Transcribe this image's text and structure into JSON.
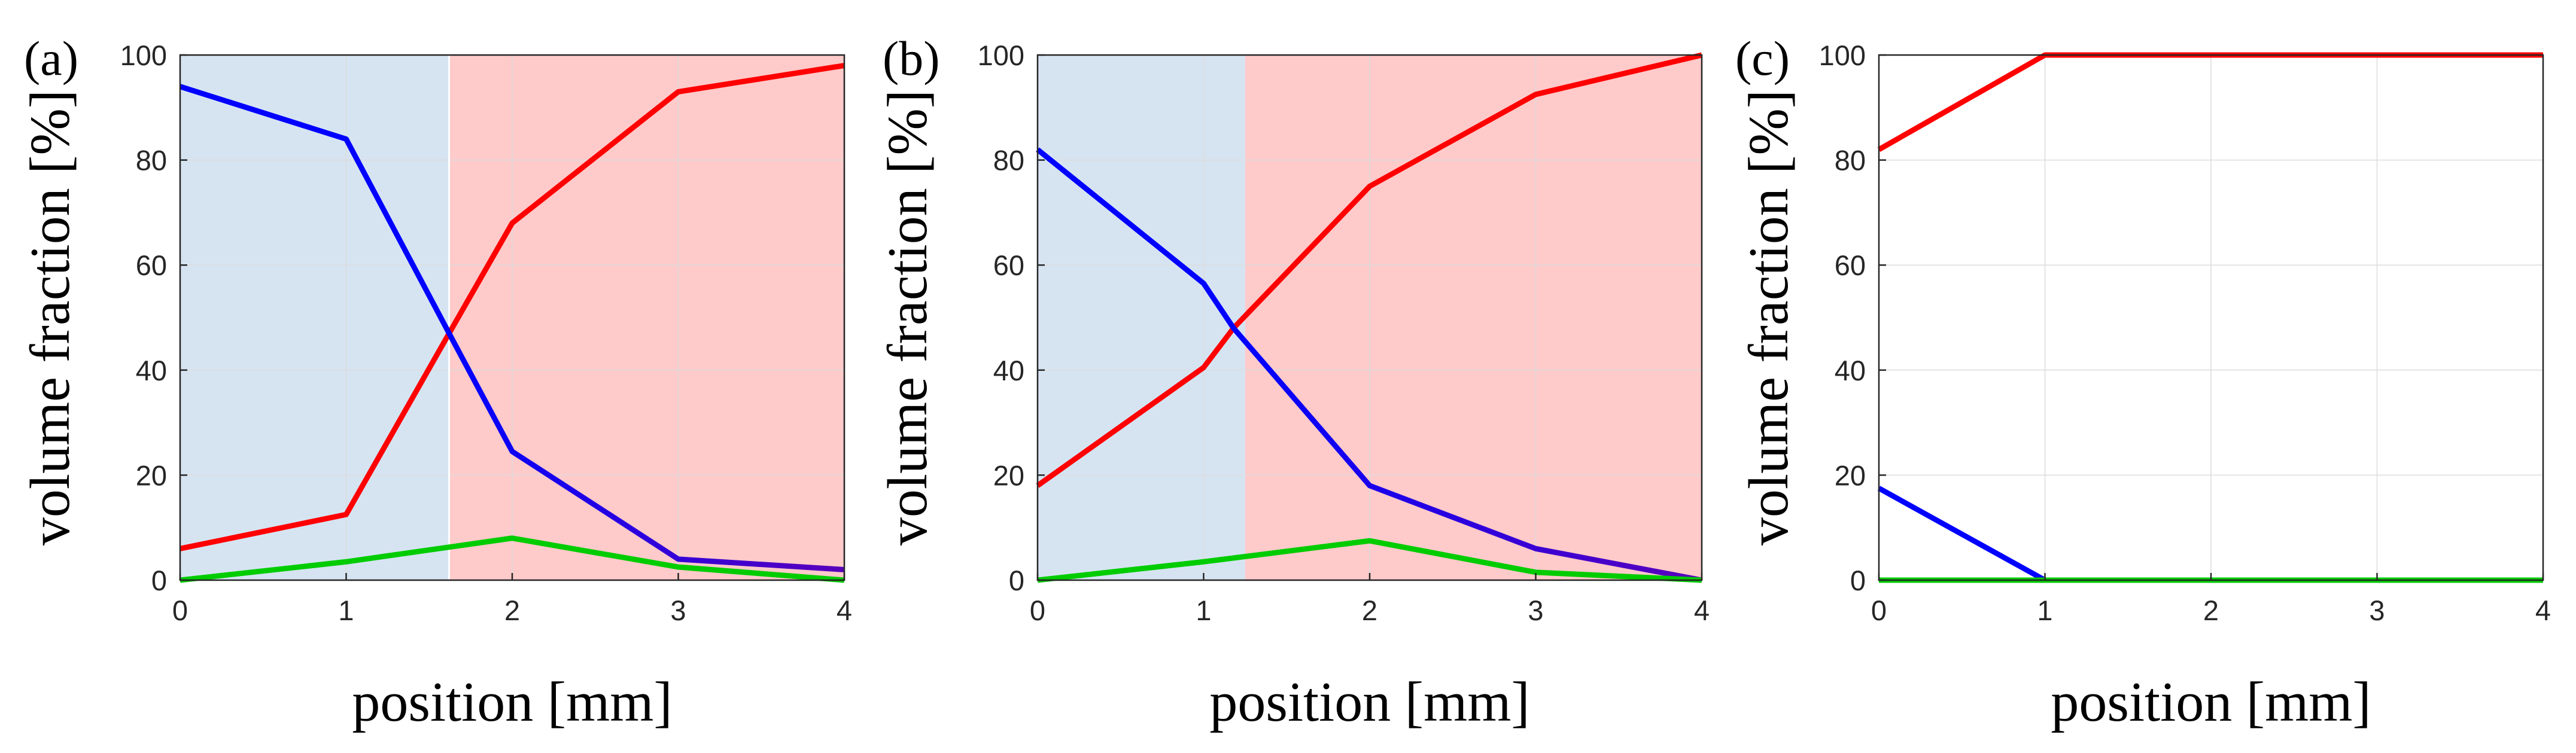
{
  "colors": {
    "red_series": "#ff0000",
    "blue_series": "#0000ff",
    "purple_series": "#5a00bb",
    "green_series": "#00cc00",
    "blue_region": "#d6e4f2",
    "red_region": "#ffcaca",
    "grid": "#dcdcdc",
    "axis": "#262626"
  },
  "chart_data": [
    {
      "type": "line",
      "panel_label": "(a)",
      "xlabel": "position [mm]",
      "ylabel": "volume fraction [%]",
      "xlim": [
        0,
        4
      ],
      "ylim": [
        0,
        100
      ],
      "xticks": [
        "0",
        "1",
        "2",
        "3",
        "4"
      ],
      "yticks": [
        "0",
        "20",
        "40",
        "60",
        "80",
        "100"
      ],
      "grid": true,
      "regions": [
        {
          "from": 0,
          "to": 1.62,
          "color": "blue"
        },
        {
          "from": 1.62,
          "to": 4,
          "color": "red"
        }
      ],
      "series": [
        {
          "name": "red",
          "color": "#ff0000",
          "x": [
            0,
            1,
            1.62,
            2,
            3,
            4
          ],
          "values": [
            6,
            12.5,
            47,
            68,
            93,
            98
          ]
        },
        {
          "name": "blue",
          "color": "#0000ff",
          "x": [
            0,
            1,
            1.62,
            2,
            3,
            4
          ],
          "values": [
            94,
            84,
            47,
            24.5,
            4,
            2
          ]
        },
        {
          "name": "green",
          "color": "#00cc00",
          "x": [
            0,
            1,
            2,
            3,
            4
          ],
          "values": [
            0,
            3.5,
            8,
            2.5,
            0
          ]
        }
      ]
    },
    {
      "type": "line",
      "panel_label": "(b)",
      "xlabel": "position [mm]",
      "ylabel": "volume fraction [%]",
      "xlim": [
        0,
        4
      ],
      "ylim": [
        0,
        100
      ],
      "xticks": [
        "0",
        "1",
        "2",
        "3",
        "4"
      ],
      "yticks": [
        "0",
        "20",
        "40",
        "60",
        "80",
        "100"
      ],
      "grid": true,
      "regions": [
        {
          "from": 0,
          "to": 1.25,
          "color": "blue"
        },
        {
          "from": 1.25,
          "to": 4,
          "color": "red"
        }
      ],
      "series": [
        {
          "name": "red",
          "color": "#ff0000",
          "x": [
            0,
            1,
            1.18,
            2,
            3,
            4
          ],
          "values": [
            18,
            40.5,
            48,
            75,
            92.5,
            100
          ]
        },
        {
          "name": "blue",
          "color": "#0000ff",
          "x": [
            0,
            1,
            1.18,
            2,
            3,
            4
          ],
          "values": [
            82,
            56.5,
            48,
            18,
            6,
            0
          ]
        },
        {
          "name": "green",
          "color": "#00cc00",
          "x": [
            0,
            1,
            2,
            3,
            4
          ],
          "values": [
            0,
            3.5,
            7.5,
            1.5,
            0
          ]
        }
      ]
    },
    {
      "type": "line",
      "panel_label": "(c)",
      "xlabel": "position [mm]",
      "ylabel": "volume fraction [%]",
      "xlim": [
        0,
        4
      ],
      "ylim": [
        0,
        100
      ],
      "xticks": [
        "0",
        "1",
        "2",
        "3",
        "4"
      ],
      "yticks": [
        "0",
        "20",
        "40",
        "60",
        "80",
        "100"
      ],
      "grid": true,
      "regions": [],
      "series": [
        {
          "name": "red",
          "color": "#ff0000",
          "x": [
            0,
            1,
            2,
            3,
            4
          ],
          "values": [
            82,
            100,
            100,
            100,
            100
          ]
        },
        {
          "name": "blue",
          "color": "#0000ff",
          "x": [
            0,
            1,
            2,
            3,
            4
          ],
          "values": [
            17.5,
            0,
            0,
            0,
            0
          ]
        },
        {
          "name": "green",
          "color": "#00cc00",
          "x": [
            0,
            1,
            2,
            3,
            4
          ],
          "values": [
            0,
            0,
            0,
            0,
            0
          ]
        }
      ]
    }
  ]
}
